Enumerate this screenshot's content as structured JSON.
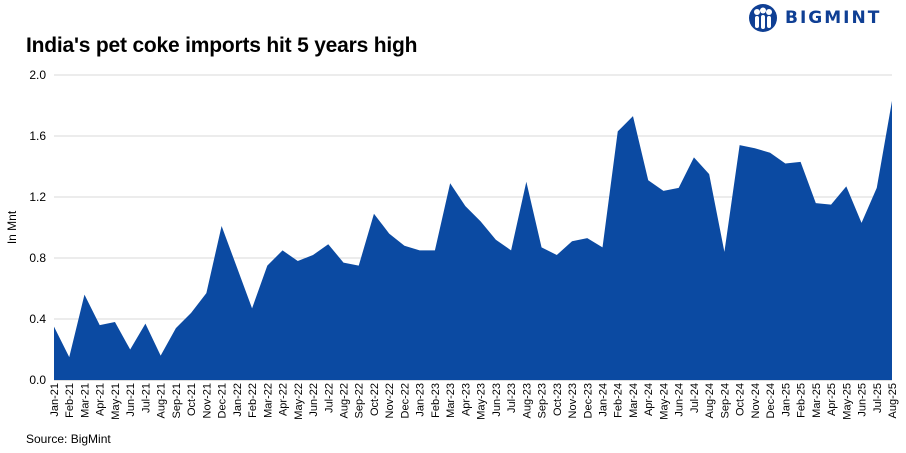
{
  "title": "India's pet coke imports hit 5 years high",
  "source": "Source: BigMint",
  "logo": {
    "text": "BIGMINT",
    "icon": "bigmint-logo-icon",
    "color": "#0f3f94"
  },
  "chart_data": {
    "type": "area",
    "title": "India's pet coke imports hit 5 years high",
    "xlabel": "",
    "ylabel": "In Mnt",
    "ylim": [
      0,
      2.0
    ],
    "yticks": [
      0.0,
      0.4,
      0.8,
      1.2,
      1.6,
      2.0
    ],
    "ytick_labels": [
      "0.0",
      "0.4",
      "0.8",
      "1.2",
      "1.6",
      "2.0"
    ],
    "grid": true,
    "color": "#0b4aa2",
    "categories": [
      "Jan-21",
      "Feb-21",
      "Mar-21",
      "Apr-21",
      "May-21",
      "Jun-21",
      "Jul-21",
      "Aug-21",
      "Sep-21",
      "Oct-21",
      "Nov-21",
      "Dec-21",
      "Jan-22",
      "Feb-22",
      "Mar-22",
      "Apr-22",
      "May-22",
      "Jun-22",
      "Jul-22",
      "Aug-22",
      "Sep-22",
      "Oct-22",
      "Nov-22",
      "Dec-22",
      "Jan-23",
      "Feb-23",
      "Mar-23",
      "Apr-23",
      "May-23",
      "Jun-23",
      "Jul-23",
      "Aug-23",
      "Sep-23",
      "Oct-23",
      "Nov-23",
      "Dec-23",
      "Jan-24",
      "Feb-24",
      "Mar-24",
      "Apr-24",
      "May-24",
      "Jun-24",
      "Jul-24",
      "Aug-24",
      "Sep-24",
      "Oct-24",
      "Nov-24",
      "Dec-24",
      "Jan-25",
      "Feb-25",
      "Mar-25",
      "Apr-25",
      "May-25",
      "Jun-25",
      "Jul-25",
      "Aug-25"
    ],
    "values": [
      0.35,
      0.15,
      0.56,
      0.36,
      0.38,
      0.2,
      0.37,
      0.16,
      0.34,
      0.44,
      0.57,
      1.01,
      0.74,
      0.47,
      0.75,
      0.85,
      0.78,
      0.82,
      0.89,
      0.77,
      0.75,
      1.09,
      0.96,
      0.88,
      0.85,
      0.85,
      1.29,
      1.14,
      1.04,
      0.92,
      0.85,
      1.3,
      0.87,
      0.82,
      0.91,
      0.93,
      0.87,
      1.63,
      1.73,
      1.31,
      1.24,
      1.26,
      1.46,
      1.35,
      0.84,
      1.54,
      1.52,
      1.49,
      1.42,
      1.43,
      1.16,
      1.15,
      1.27,
      1.03,
      1.26,
      1.83
    ]
  }
}
